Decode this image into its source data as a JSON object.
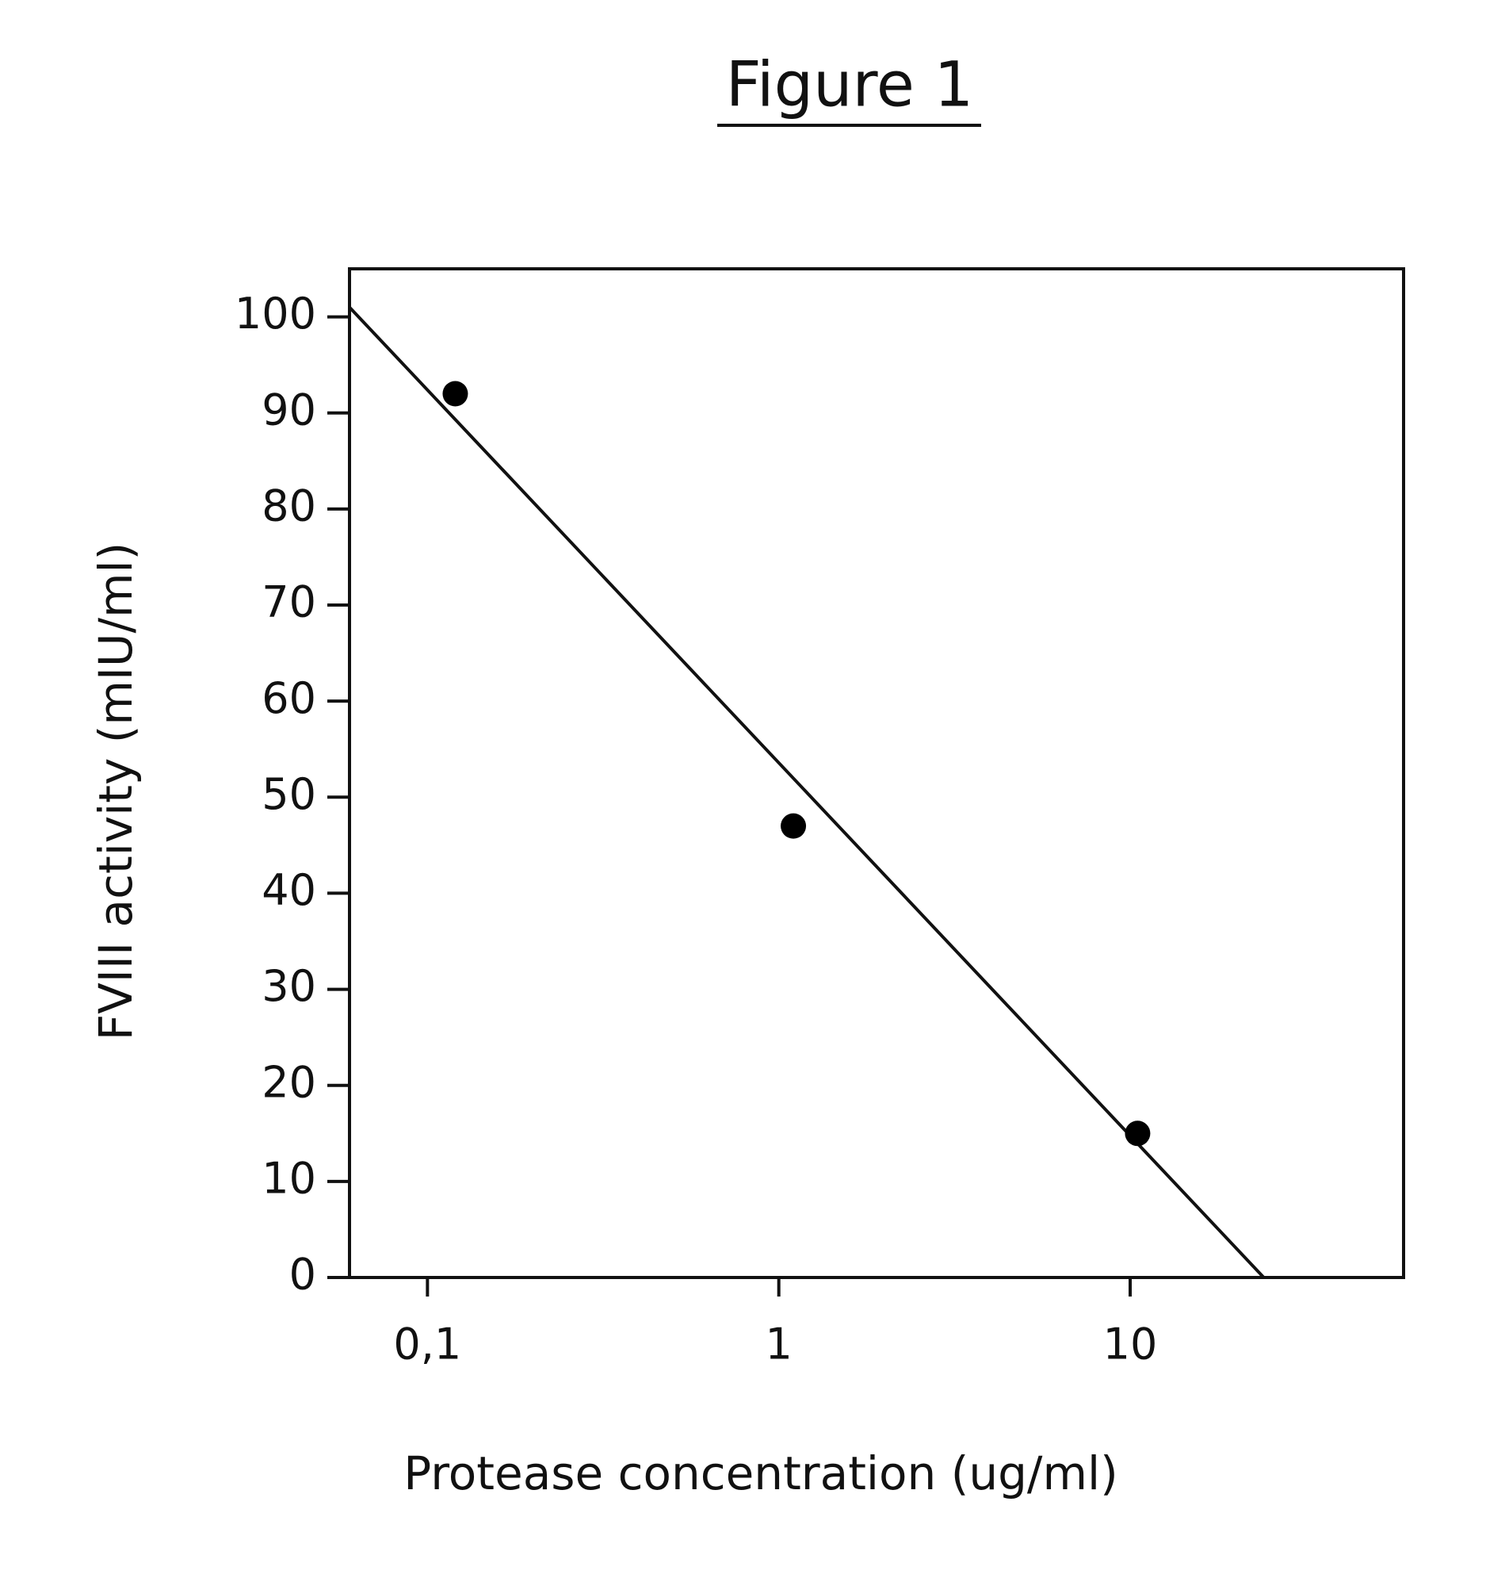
{
  "chart_data": {
    "type": "scatter",
    "title": "Figure 1",
    "x_label": "Protease concentration (ug/ml)",
    "y_label": "FVIII activity (mIU/ml)",
    "x": [
      0.12,
      1.1,
      10.5
    ],
    "values": [
      92,
      47,
      15
    ],
    "color": "#000000",
    "fit": {
      "x": [
        0.06,
        24
      ],
      "values": [
        101,
        0
      ]
    },
    "xlog": true,
    "xlim": [
      0.06,
      60
    ],
    "xticks": [
      {
        "value": 0.1,
        "label": "0,1"
      },
      1,
      10
    ],
    "ylim": [
      0,
      105
    ],
    "yticks": [
      0,
      10,
      20,
      30,
      40,
      50,
      60,
      70,
      80,
      90,
      100
    ],
    "grid": false
  }
}
